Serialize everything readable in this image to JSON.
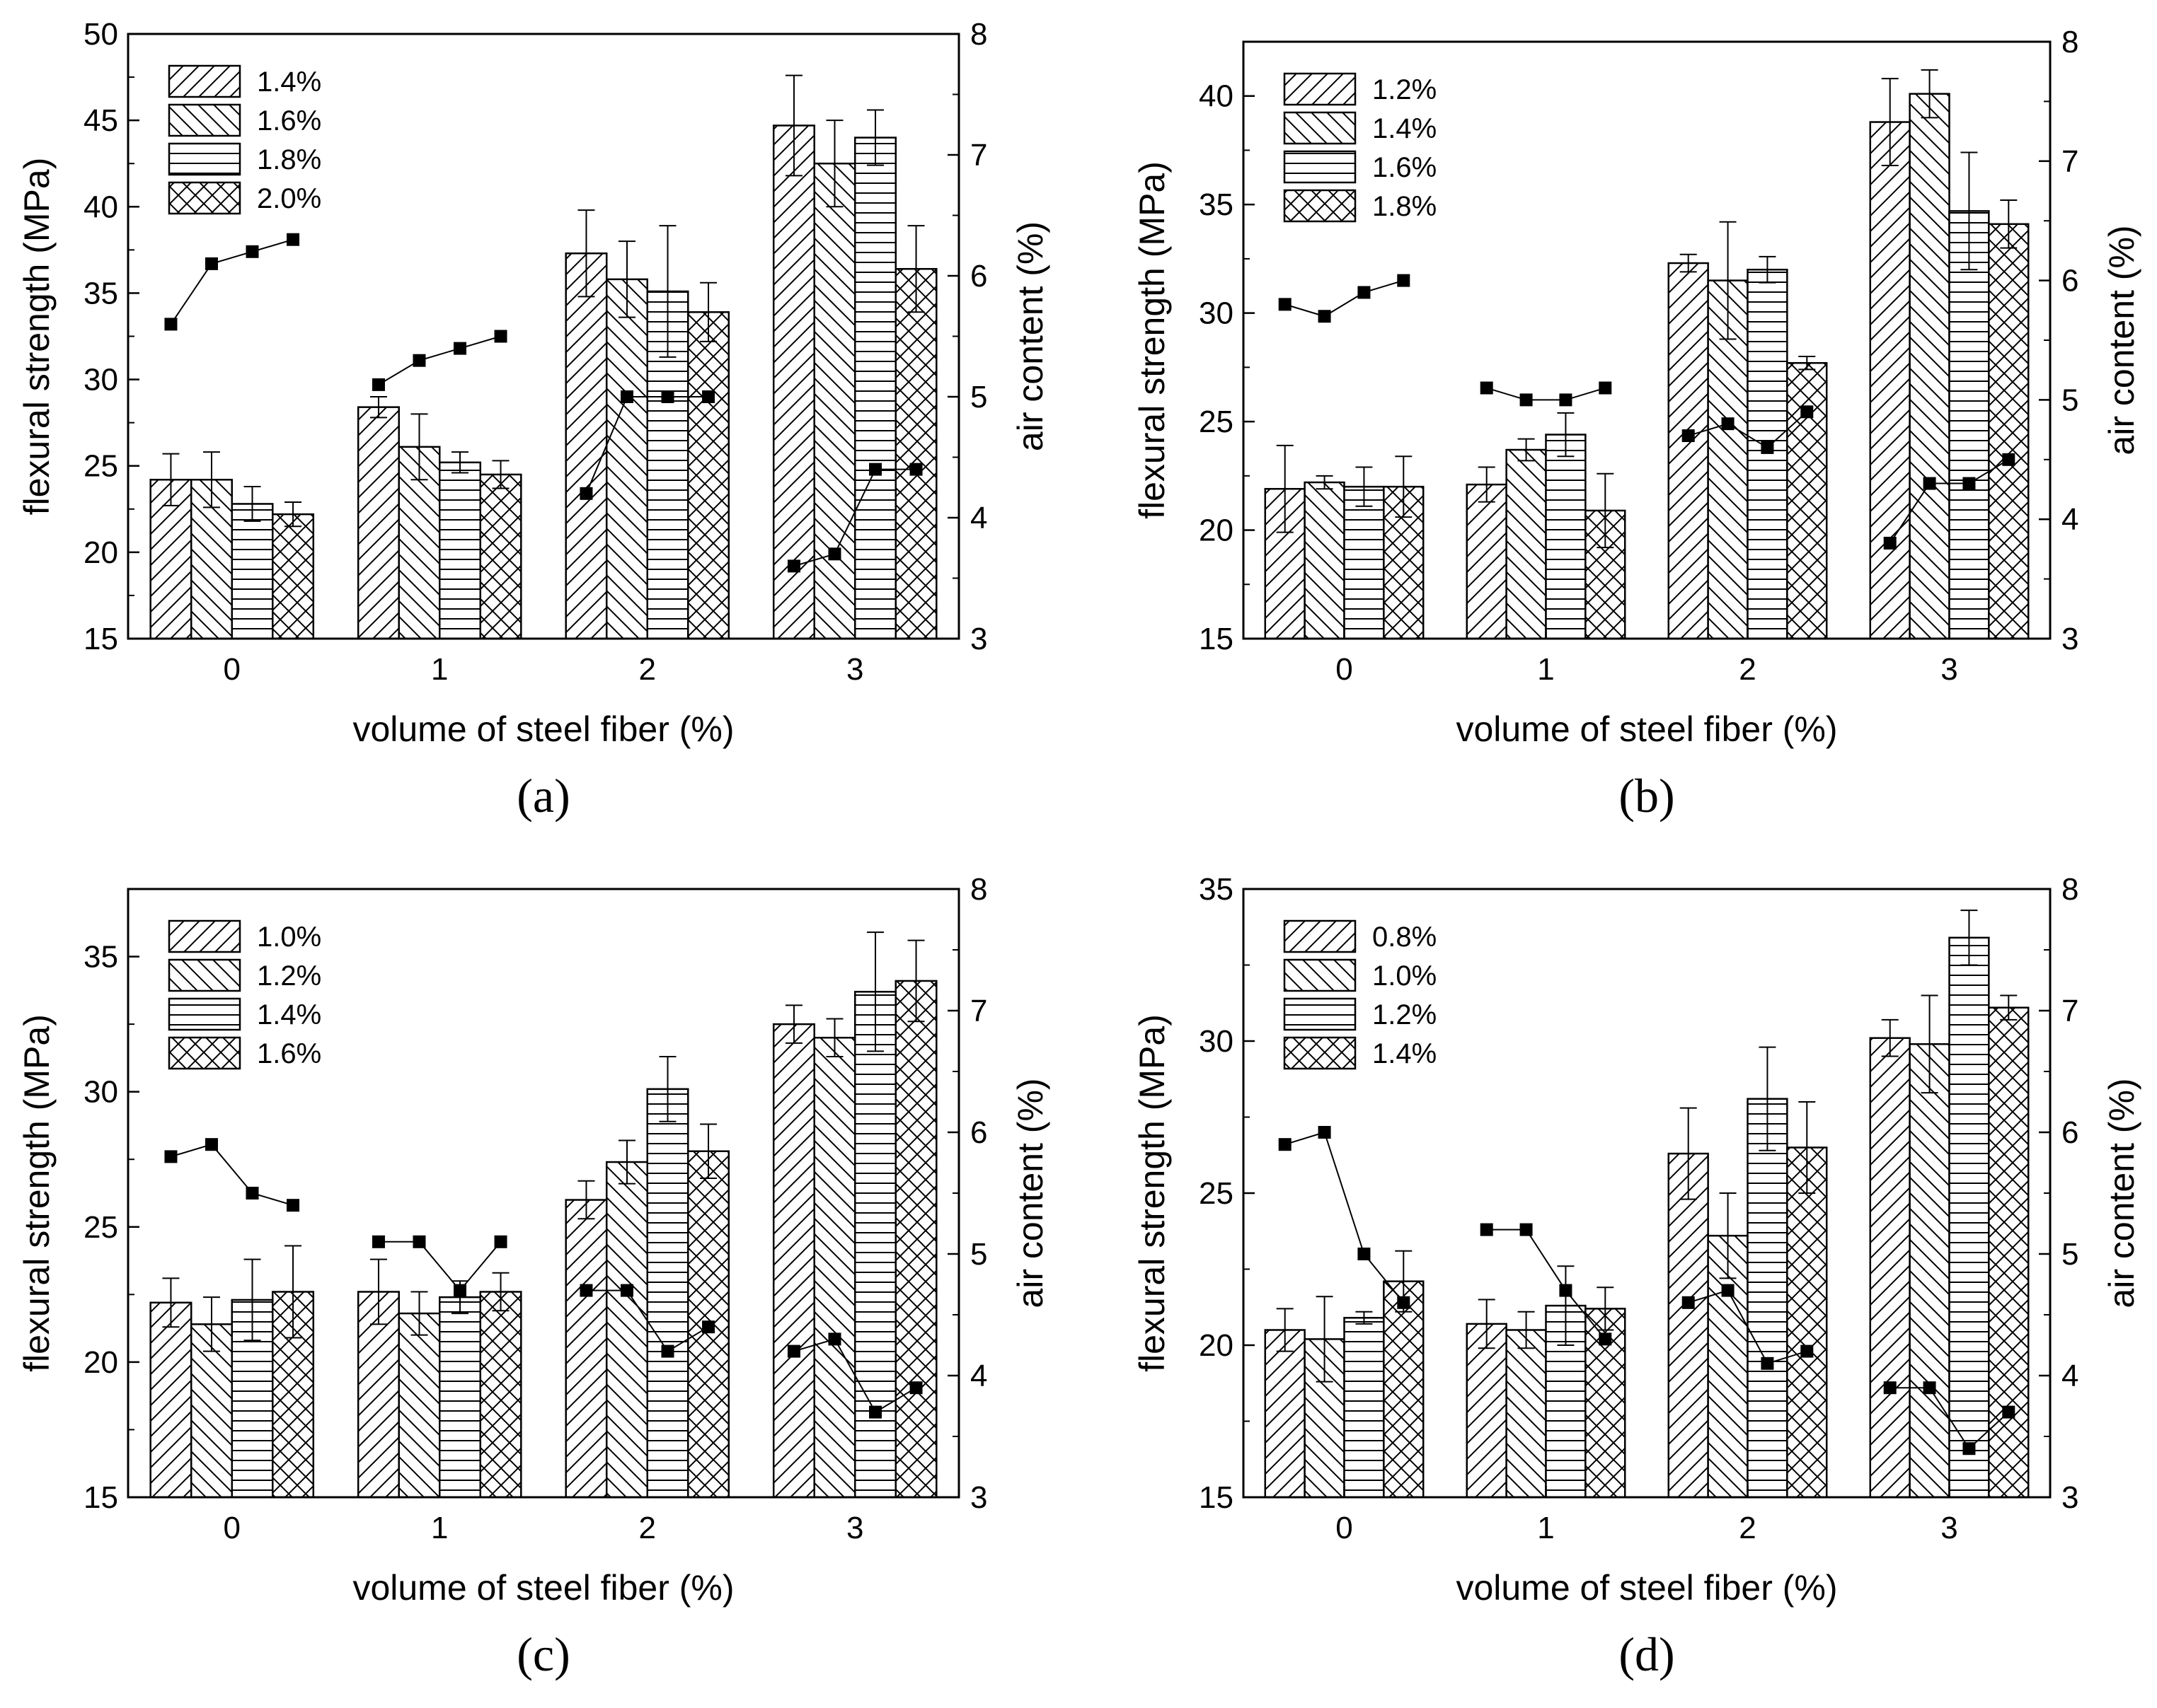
{
  "chart_data": [
    {
      "panel": "(a)",
      "type": "bar",
      "categories": [
        "0",
        "1",
        "2",
        "3"
      ],
      "xlabel": "volume of steel fiber (%)",
      "ylabel": "flexural strength (MPa)",
      "y2label": "air content (%)",
      "ylim": [
        15,
        50
      ],
      "yticks": [
        15,
        20,
        25,
        30,
        35,
        40,
        45,
        50
      ],
      "y2lim": [
        3,
        8
      ],
      "y2ticks": [
        3,
        4,
        5,
        6,
        7,
        8
      ],
      "legend_position": "top-left",
      "series": [
        {
          "name": "1.4%",
          "pattern": "diag-right",
          "values": [
            24.2,
            28.4,
            37.3,
            44.7
          ],
          "errors": [
            1.5,
            0.6,
            2.5,
            2.9
          ]
        },
        {
          "name": "1.6%",
          "pattern": "diag-left",
          "values": [
            24.2,
            26.1,
            35.8,
            42.5
          ],
          "errors": [
            1.6,
            1.9,
            2.2,
            2.5
          ]
        },
        {
          "name": "1.8%",
          "pattern": "horizontal",
          "values": [
            22.8,
            25.2,
            35.1,
            44.0
          ],
          "errors": [
            1.0,
            0.6,
            3.8,
            1.6
          ]
        },
        {
          "name": "2.0%",
          "pattern": "cross",
          "values": [
            22.2,
            24.5,
            33.9,
            36.4
          ],
          "errors": [
            0.7,
            0.8,
            1.7,
            2.5
          ]
        }
      ],
      "air_content": [
        [
          5.6,
          6.1,
          6.2,
          6.3
        ],
        [
          5.1,
          5.3,
          5.4,
          5.5
        ],
        [
          4.2,
          5.0,
          5.0,
          5.0
        ],
        [
          3.6,
          3.7,
          4.4,
          4.4
        ]
      ]
    },
    {
      "panel": "(b)",
      "type": "bar",
      "categories": [
        "0",
        "1",
        "2",
        "3"
      ],
      "xlabel": "volume of steel fiber (%)",
      "ylabel": "flexural strength (MPa)",
      "y2label": "air content (%)",
      "ylim": [
        15,
        42.5
      ],
      "yticks": [
        15,
        20,
        25,
        30,
        35,
        40
      ],
      "y2lim": [
        3,
        8
      ],
      "y2ticks": [
        3,
        4,
        5,
        6,
        7,
        8
      ],
      "legend_position": "top-left",
      "series": [
        {
          "name": "1.2%",
          "pattern": "diag-right",
          "values": [
            21.9,
            22.1,
            32.3,
            38.8
          ],
          "errors": [
            2.0,
            0.8,
            0.4,
            2.0
          ]
        },
        {
          "name": "1.4%",
          "pattern": "diag-left",
          "values": [
            22.2,
            23.7,
            31.5,
            40.1
          ],
          "errors": [
            0.3,
            0.5,
            2.7,
            1.1
          ]
        },
        {
          "name": "1.6%",
          "pattern": "horizontal",
          "values": [
            22.0,
            24.4,
            32.0,
            34.7
          ],
          "errors": [
            0.9,
            1.0,
            0.6,
            2.7
          ]
        },
        {
          "name": "1.8%",
          "pattern": "cross",
          "values": [
            22.0,
            20.9,
            27.7,
            34.1
          ],
          "errors": [
            1.4,
            1.7,
            0.3,
            1.1
          ]
        }
      ],
      "air_content": [
        [
          5.8,
          5.7,
          5.9,
          6.0
        ],
        [
          5.1,
          5.0,
          5.0,
          5.1
        ],
        [
          4.7,
          4.8,
          4.6,
          4.9
        ],
        [
          3.8,
          4.3,
          4.3,
          4.5
        ]
      ]
    },
    {
      "panel": "(c)",
      "type": "bar",
      "categories": [
        "0",
        "1",
        "2",
        "3"
      ],
      "xlabel": "volume of steel fiber (%)",
      "ylabel": "flexural strength (MPa)",
      "y2label": "air content (%)",
      "ylim": [
        15,
        37.5
      ],
      "yticks": [
        15,
        20,
        25,
        30,
        35
      ],
      "y2lim": [
        3,
        8
      ],
      "y2ticks": [
        3,
        4,
        5,
        6,
        7,
        8
      ],
      "legend_position": "top-left",
      "series": [
        {
          "name": "1.0%",
          "pattern": "diag-right",
          "values": [
            22.2,
            22.6,
            26.0,
            32.5
          ],
          "errors": [
            0.9,
            1.2,
            0.7,
            0.7
          ]
        },
        {
          "name": "1.2%",
          "pattern": "diag-left",
          "values": [
            21.4,
            21.8,
            27.4,
            32.0
          ],
          "errors": [
            1.0,
            0.8,
            0.8,
            0.7
          ]
        },
        {
          "name": "1.4%",
          "pattern": "horizontal",
          "values": [
            22.3,
            22.4,
            30.1,
            33.7
          ],
          "errors": [
            1.5,
            0.6,
            1.2,
            2.2
          ]
        },
        {
          "name": "1.6%",
          "pattern": "cross",
          "values": [
            22.6,
            22.6,
            27.8,
            34.1
          ],
          "errors": [
            1.7,
            0.7,
            1.0,
            1.5
          ]
        }
      ],
      "air_content": [
        [
          5.8,
          5.9,
          5.5,
          5.4
        ],
        [
          5.1,
          5.1,
          4.7,
          5.1
        ],
        [
          4.7,
          4.7,
          4.2,
          4.4
        ],
        [
          4.2,
          4.3,
          3.7,
          3.9
        ]
      ]
    },
    {
      "panel": "(d)",
      "type": "bar",
      "categories": [
        "0",
        "1",
        "2",
        "3"
      ],
      "xlabel": "volume of steel fiber (%)",
      "ylabel": "flexural strength (MPa)",
      "y2label": "air content (%)",
      "ylim": [
        15,
        35
      ],
      "yticks": [
        15,
        20,
        25,
        30,
        35
      ],
      "y2lim": [
        3,
        8
      ],
      "y2ticks": [
        3,
        4,
        5,
        6,
        7,
        8
      ],
      "legend_position": "top-left",
      "series": [
        {
          "name": "0.8%",
          "pattern": "diag-right",
          "values": [
            20.5,
            20.7,
            26.3,
            30.1
          ],
          "errors": [
            0.7,
            0.8,
            1.5,
            0.6
          ]
        },
        {
          "name": "1.0%",
          "pattern": "diag-left",
          "values": [
            20.2,
            20.5,
            23.6,
            29.9
          ],
          "errors": [
            1.4,
            0.6,
            1.4,
            1.6
          ]
        },
        {
          "name": "1.2%",
          "pattern": "horizontal",
          "values": [
            20.9,
            21.3,
            28.1,
            33.4
          ],
          "errors": [
            0.2,
            1.3,
            1.7,
            0.9
          ]
        },
        {
          "name": "1.4%",
          "pattern": "cross",
          "values": [
            22.1,
            21.2,
            26.5,
            31.1
          ],
          "errors": [
            1.0,
            0.7,
            1.5,
            0.4
          ]
        }
      ],
      "air_content": [
        [
          5.9,
          6.0,
          5.0,
          4.6
        ],
        [
          5.2,
          5.2,
          4.7,
          4.3
        ],
        [
          4.6,
          4.7,
          4.1,
          4.2
        ],
        [
          3.9,
          3.9,
          3.4,
          3.7
        ]
      ]
    }
  ]
}
